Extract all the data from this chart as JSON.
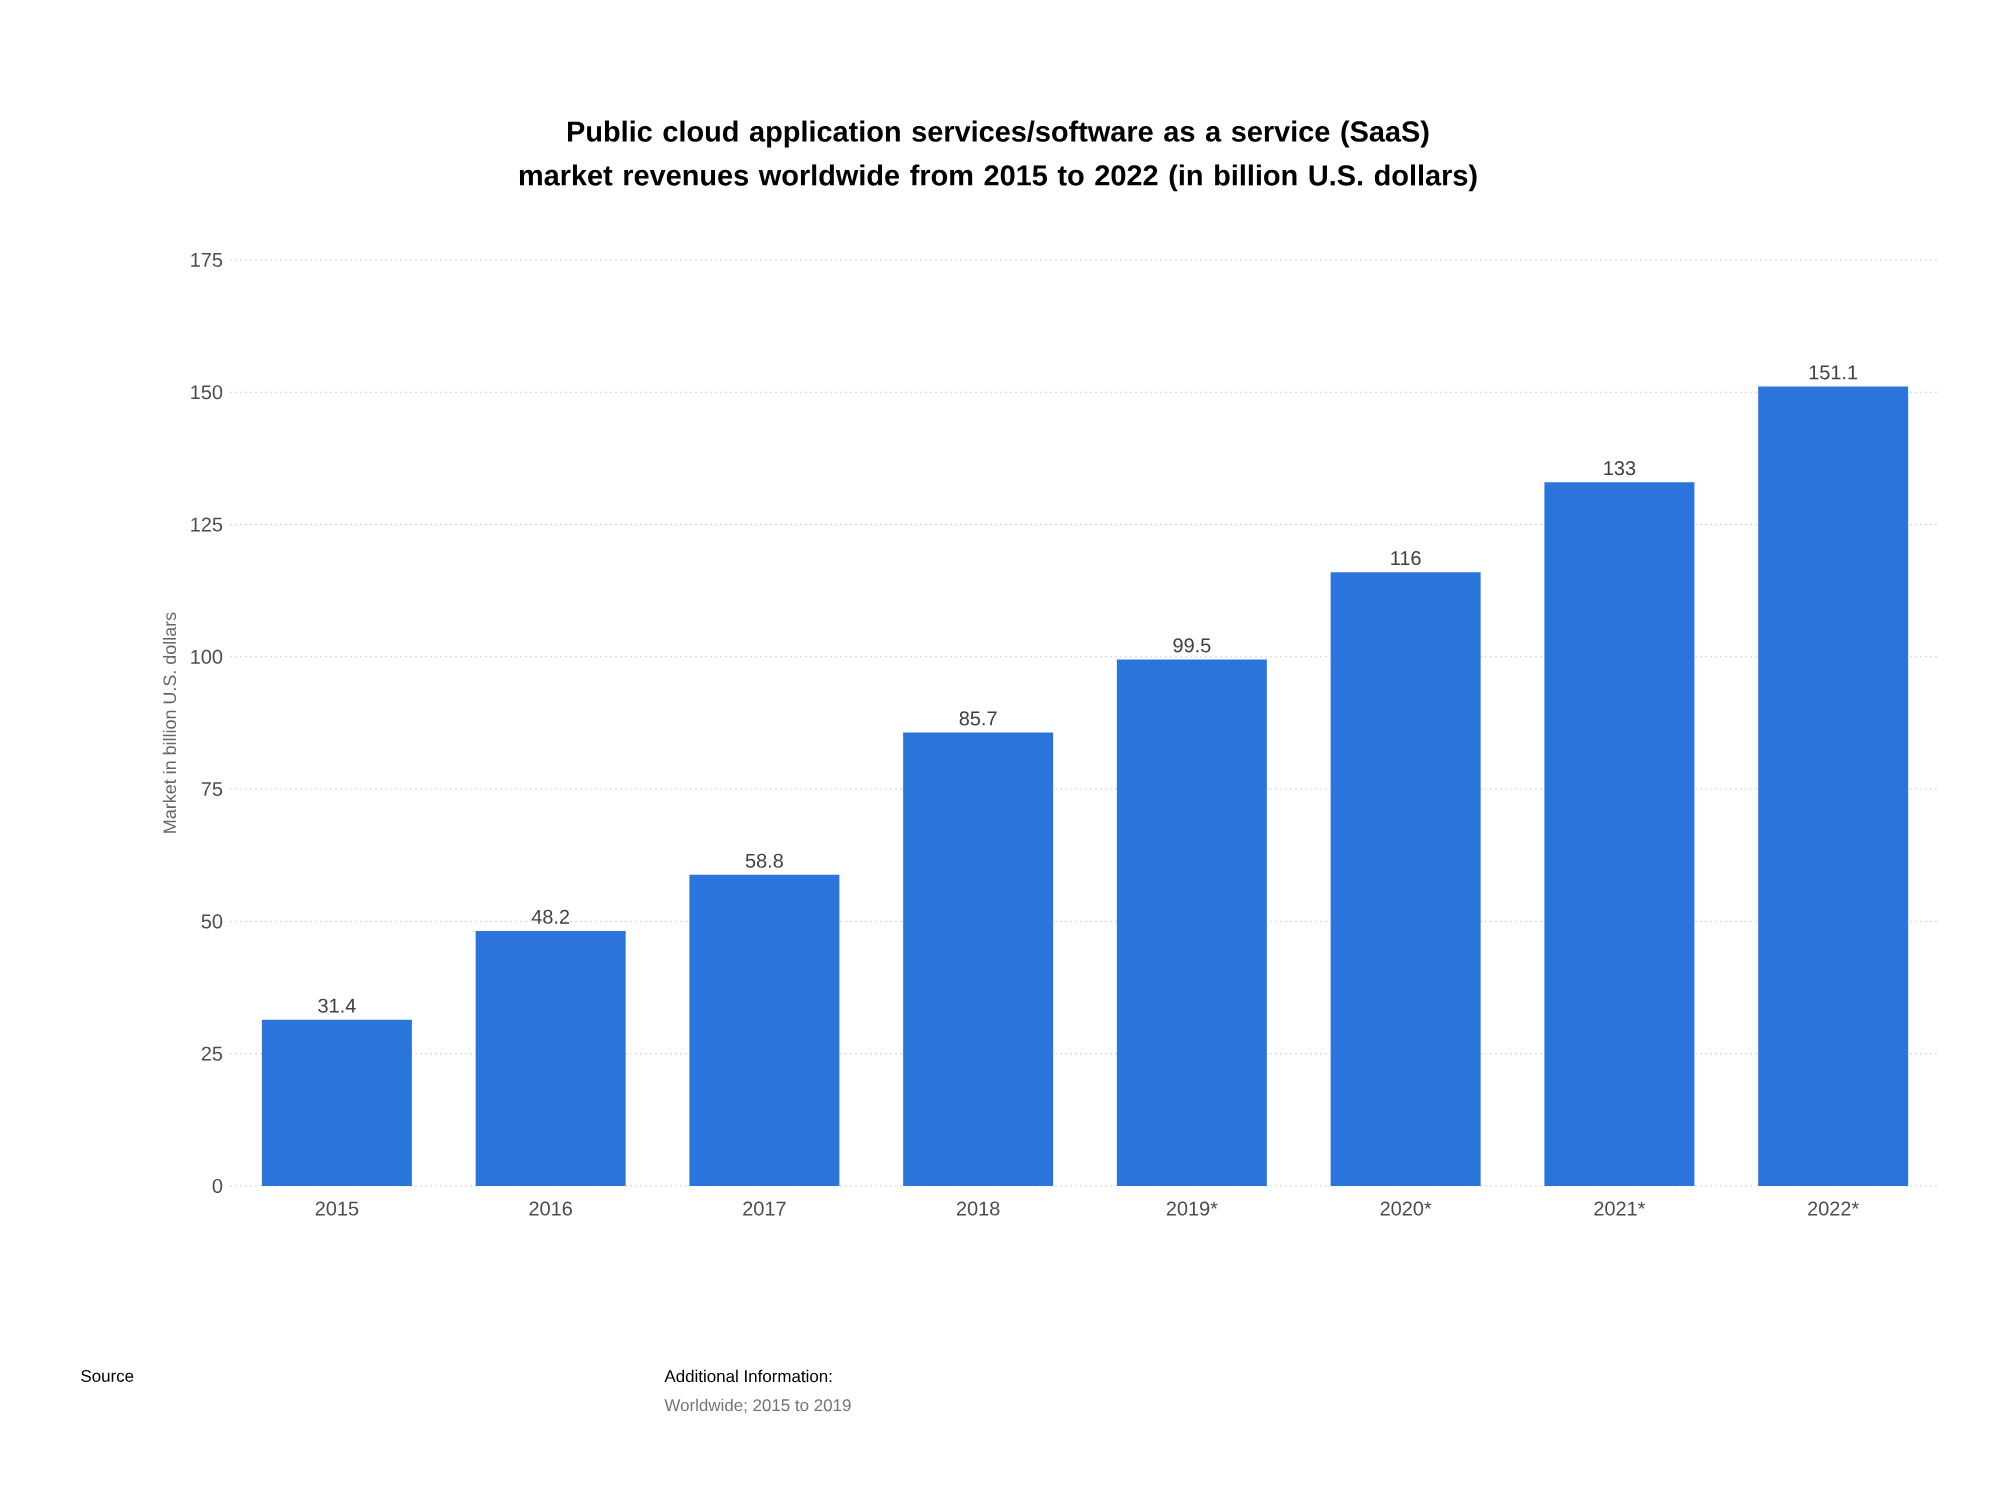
{
  "chart_data": {
    "type": "bar",
    "title": "Public cloud application services/software as a service (SaaS) market revenues worldwide from 2015 to 2022 (in billion U.S. dollars)",
    "ylabel": "Market in billion U.S. dollars",
    "categories": [
      "2015",
      "2016",
      "2017",
      "2018",
      "2019*",
      "2020*",
      "2021*",
      "2022*"
    ],
    "values": [
      31.4,
      48.2,
      58.8,
      85.7,
      99.5,
      116,
      133,
      151.1
    ],
    "color": "#2a74dc",
    "ylim": [
      0,
      175
    ],
    "yticks": [
      0,
      25,
      50,
      75,
      100,
      125,
      150,
      175
    ],
    "grid": "y",
    "data_labels": true,
    "annotations": [
      "Source",
      "Additional Information:",
      "Worldwide; 2015 to 2019"
    ]
  }
}
